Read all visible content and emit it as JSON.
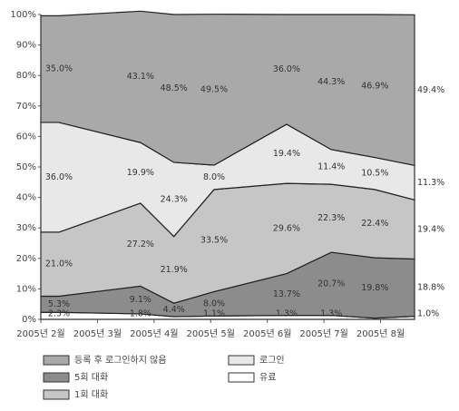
{
  "chart_data": {
    "type": "stacked-area",
    "x": [
      2.32,
      3.76,
      4.35,
      5.06,
      6.34,
      7.13,
      7.9,
      8.6
    ],
    "xlim": [
      2,
      8.6
    ],
    "xticks": [
      {
        "value": 2,
        "label": "2005년 2월"
      },
      {
        "value": 3,
        "label": "2005년 3월"
      },
      {
        "value": 4,
        "label": "2005년 4월"
      },
      {
        "value": 5,
        "label": "2005년 5월"
      },
      {
        "value": 6,
        "label": "2005년 6월"
      },
      {
        "value": 7,
        "label": "2005년 7월"
      },
      {
        "value": 8,
        "label": "2005년 8월"
      }
    ],
    "ylim": [
      0,
      100
    ],
    "yticks": [
      {
        "value": 0,
        "label": "0%"
      },
      {
        "value": 10,
        "label": "10%"
      },
      {
        "value": 20,
        "label": "20%"
      },
      {
        "value": 30,
        "label": "30%"
      },
      {
        "value": 40,
        "label": "40%"
      },
      {
        "value": 50,
        "label": "50%"
      },
      {
        "value": 60,
        "label": "60%"
      },
      {
        "value": 70,
        "label": "70%"
      },
      {
        "value": 80,
        "label": "80%"
      },
      {
        "value": 90,
        "label": "90%"
      },
      {
        "value": 100,
        "label": "100%"
      }
    ],
    "series": [
      {
        "name": "유료",
        "color": "#ffffff",
        "values": [
          2.3,
          1.8,
          0.9,
          1.1,
          1.3,
          1.3,
          0.4,
          1.0
        ],
        "value_labels": [
          "2.3%",
          "1.8%",
          null,
          "1.1%",
          "1.3%",
          "1.3%",
          null,
          "1.0%"
        ]
      },
      {
        "name": "5회 대화",
        "color": "#8c8c8c",
        "values": [
          5.3,
          9.1,
          4.4,
          8.0,
          13.7,
          20.7,
          19.8,
          18.8
        ],
        "value_labels": [
          "5.3%",
          "9.1%",
          "4.4%",
          "8.0%",
          "13.7%",
          "20.7%",
          "19.8%",
          "18.8%"
        ]
      },
      {
        "name": "1회 대화",
        "color": "#c6c6c6",
        "values": [
          21.0,
          27.2,
          21.9,
          33.5,
          29.6,
          22.3,
          22.4,
          19.4
        ],
        "value_labels": [
          "21.0%",
          "27.2%",
          "21.9%",
          "33.5%",
          "29.6%",
          "22.3%",
          "22.4%",
          "19.4%"
        ]
      },
      {
        "name": "로그인",
        "color": "#e8e8e8",
        "values": [
          36.0,
          19.9,
          24.3,
          8.0,
          19.4,
          11.4,
          10.5,
          11.3
        ],
        "value_labels": [
          "36.0%",
          "19.9%",
          "24.3%",
          "8.0%",
          "19.4%",
          "11.4%",
          "10.5%",
          "11.3%"
        ]
      },
      {
        "name": "등록 후 로그인하지 않음",
        "color": "#a9a9a9",
        "values": [
          35.0,
          43.1,
          48.5,
          49.5,
          36.0,
          44.3,
          46.9,
          49.4
        ],
        "value_labels": [
          "35.0%",
          "43.1%",
          "48.5%",
          "49.5%",
          "36.0%",
          "44.3%",
          "46.9%",
          "49.4%"
        ]
      }
    ]
  }
}
